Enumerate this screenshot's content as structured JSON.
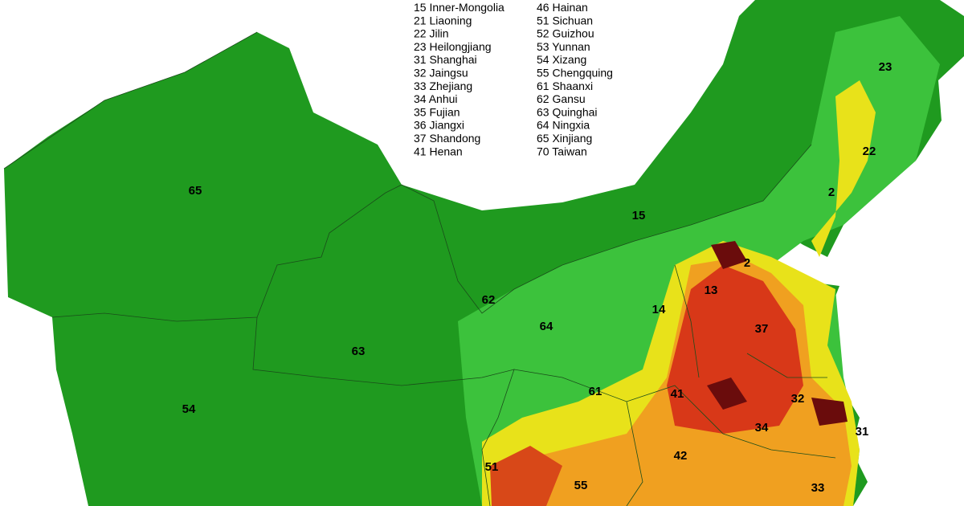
{
  "legend": {
    "left": [
      "15 Inner-Mongolia",
      "21 Liaoning",
      "22 Jilin",
      "23 Heilongjiang",
      "31 Shanghai",
      "32 Jaingsu",
      "33 Zhejiang",
      "34 Anhui",
      "35 Fujian",
      "36 Jiangxi",
      "37 Shandong",
      "41 Henan"
    ],
    "right": [
      "46 Hainan",
      "51 Sichuan",
      "52 Guizhou",
      "53 Yunnan",
      "54 Xizang",
      "55 Chengquing",
      "61 Shaanxi",
      "62 Gansu",
      "63 Quinghai",
      "64 Ningxia",
      "65 Xinjiang",
      "70 Taiwan"
    ]
  },
  "map": {
    "labels": [
      "65",
      "15",
      "23",
      "22",
      "2",
      "2",
      "13",
      "14",
      "37",
      "62",
      "64",
      "63",
      "61",
      "41",
      "32",
      "34",
      "31",
      "54",
      "51",
      "42",
      "55",
      "33"
    ]
  }
}
